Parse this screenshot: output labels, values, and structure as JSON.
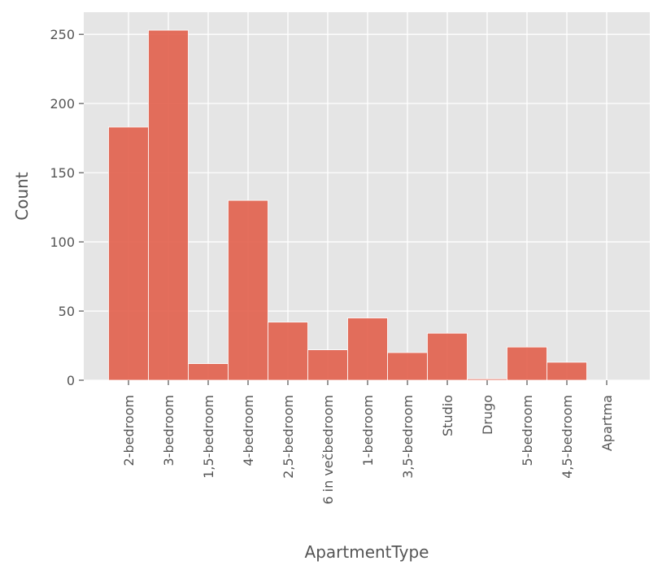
{
  "chart_data": {
    "type": "bar",
    "xlabel": "ApartmentType",
    "ylabel": "Count",
    "categories": [
      "2-bedroom",
      "3-bedroom",
      "1,5-bedroom",
      "4-bedroom",
      "2,5-bedroom",
      "6 in večbedroom",
      "1-bedroom",
      "3,5-bedroom",
      "Studio",
      "Drugo",
      "5-bedroom",
      "4,5-bedroom",
      "Apartma"
    ],
    "values": [
      183,
      253,
      12,
      130,
      42,
      22,
      45,
      20,
      34,
      1,
      24,
      13,
      0
    ],
    "ylim": [
      0,
      266
    ],
    "yticks": [
      "0",
      "50",
      "100",
      "150",
      "200",
      "250"
    ],
    "grid": true,
    "colors": {
      "bar": "#E2634F",
      "bar_edge": "#FFFFFF",
      "background": "#E5E5E5",
      "grid": "#FFFFFF",
      "text": "#555555"
    }
  }
}
